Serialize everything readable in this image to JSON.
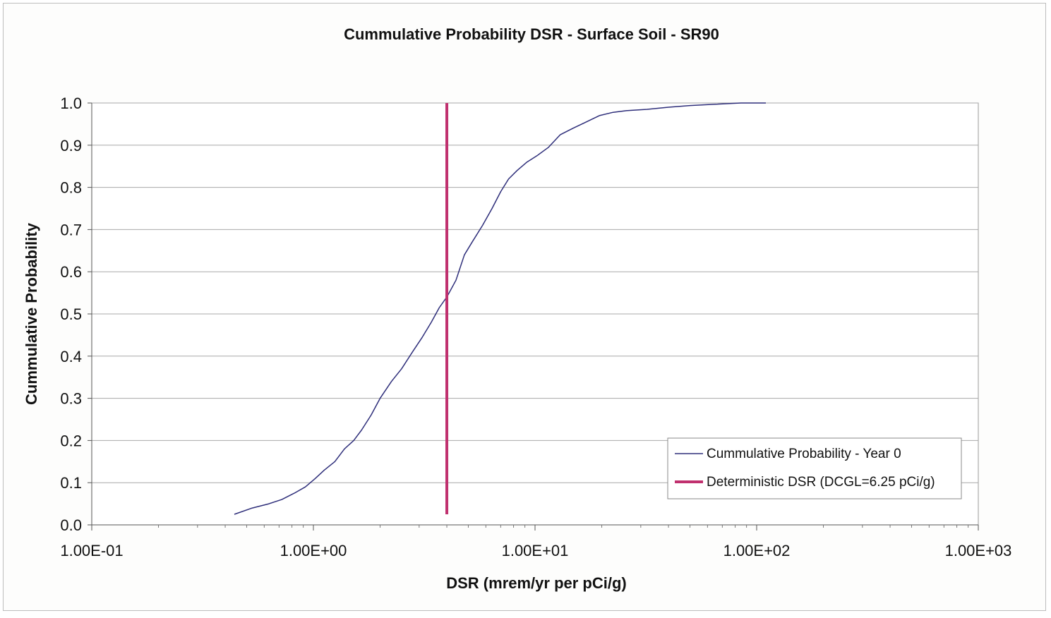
{
  "chart_data": {
    "type": "line",
    "title": "Cummulative Probability DSR - Surface Soil - SR90",
    "xlabel": "DSR (mrem/yr per pCi/g)",
    "ylabel": "Cummulative Probability",
    "x_scale": "log",
    "xlim": [
      0.1,
      1000
    ],
    "ylim": [
      0.0,
      1.0
    ],
    "x_tick_labels": [
      "1.00E-01",
      "1.00E+00",
      "1.00E+01",
      "1.00E+02",
      "1.00E+03"
    ],
    "x_tick_values": [
      0.1,
      1,
      10,
      100,
      1000
    ],
    "y_tick_labels": [
      "0.0",
      "0.1",
      "0.2",
      "0.3",
      "0.4",
      "0.5",
      "0.6",
      "0.7",
      "0.8",
      "0.9",
      "1.0"
    ],
    "y_tick_values": [
      0.0,
      0.1,
      0.2,
      0.3,
      0.4,
      0.5,
      0.6,
      0.7,
      0.8,
      0.9,
      1.0
    ],
    "grid": "horizontal",
    "legend_position": "bottom-right",
    "series": [
      {
        "name": "Cummulative Probability - Year 0",
        "color": "#2e2e7a",
        "x": [
          0.44,
          0.53,
          0.63,
          0.72,
          0.82,
          0.92,
          1.02,
          1.12,
          1.25,
          1.38,
          1.52,
          1.65,
          1.82,
          2.0,
          2.25,
          2.5,
          2.8,
          3.1,
          3.4,
          3.7,
          4.0,
          4.4,
          4.8,
          5.2,
          5.8,
          6.4,
          7.0,
          7.6,
          8.3,
          9.2,
          10.2,
          11.5,
          13.0,
          14.8,
          17.0,
          19.5,
          22.5,
          26.0,
          32.0,
          40.0,
          50.0,
          65.0,
          85.0,
          110.0
        ],
        "y": [
          0.025,
          0.04,
          0.05,
          0.06,
          0.075,
          0.09,
          0.11,
          0.13,
          0.15,
          0.18,
          0.2,
          0.225,
          0.26,
          0.3,
          0.34,
          0.37,
          0.41,
          0.445,
          0.48,
          0.515,
          0.54,
          0.58,
          0.64,
          0.67,
          0.71,
          0.75,
          0.79,
          0.82,
          0.84,
          0.86,
          0.875,
          0.895,
          0.925,
          0.94,
          0.955,
          0.97,
          0.978,
          0.982,
          0.985,
          0.99,
          0.994,
          0.997,
          1.0,
          1.0
        ]
      },
      {
        "name": "Deterministic DSR (DCGL=6.25 pCi/g)",
        "color": "#c0306e",
        "x": [
          4.0,
          4.0
        ],
        "y": [
          0.025,
          1.0
        ]
      }
    ]
  }
}
